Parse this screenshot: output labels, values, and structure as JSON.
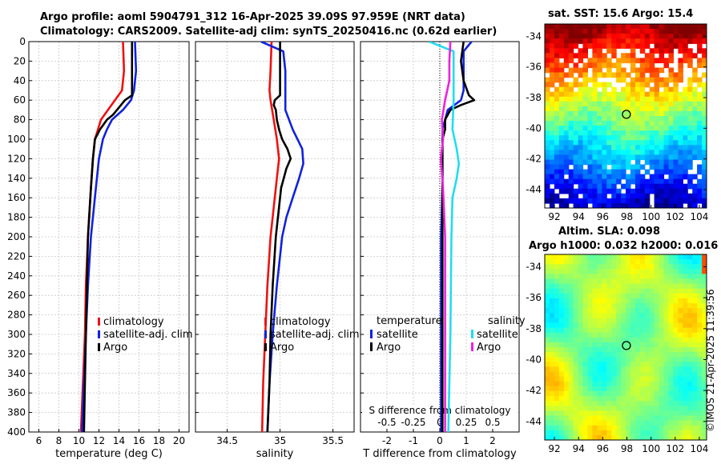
{
  "header": {
    "line1": "Argo profile: aoml 5904791_312 16-Apr-2025 39.09S 97.959E (NRT data)",
    "line2": "Climatology: CARS2009. Satellite-adj clim: synTS_20250416.nc (0.62d earlier)"
  },
  "maps": {
    "sst_title": "sat. SST: 15.6 Argo: 15.4",
    "sla_title1": "Altim. SLA: 0.098",
    "sla_title2": "Argo h1000: 0.032 h2000: 0.016",
    "credit": "©IMOS 21-Apr-2025 11:39:56",
    "lat_ticks": [
      "-34",
      "-36",
      "-38",
      "-40",
      "-42",
      "-44"
    ],
    "lon_ticks": [
      "92",
      "94",
      "96",
      "98",
      "100",
      "102",
      "104"
    ],
    "argo_lon": 97.96,
    "argo_lat": -39.09,
    "lon_range": [
      91.2,
      104.6
    ],
    "lat_range": [
      -45.2,
      -33.2
    ]
  },
  "colors": {
    "climatology": "#ee1111",
    "satellite": "#1122dd",
    "argo": "#000000",
    "salinity_satellite": "#22ddee",
    "salinity_argo": "#ee22dd"
  },
  "chart_data": [
    {
      "type": "line",
      "name": "temperature",
      "xlabel": "temperature (deg C)",
      "ylabel": "depth",
      "xlim": [
        5,
        21
      ],
      "ylim": [
        400,
        0
      ],
      "xticks": [
        "6",
        "8",
        "10",
        "12",
        "14",
        "16",
        "18",
        "20"
      ],
      "yticks": [
        "0",
        "20",
        "40",
        "60",
        "80",
        "100",
        "120",
        "140",
        "160",
        "180",
        "200",
        "220",
        "240",
        "260",
        "280",
        "300",
        "320",
        "340",
        "360",
        "380",
        "400"
      ],
      "legend": [
        "climatology",
        "satellite-adj. clim",
        "Argo"
      ],
      "series": [
        {
          "name": "climatology",
          "depth": [
            0,
            30,
            50,
            60,
            70,
            80,
            90,
            100,
            120,
            150,
            200,
            250,
            300,
            350,
            400
          ],
          "values": [
            14.4,
            14.5,
            14.3,
            13.6,
            12.9,
            12.2,
            11.9,
            11.6,
            11.4,
            11.2,
            10.9,
            10.7,
            10.6,
            10.4,
            10.2
          ]
        },
        {
          "name": "satellite-adj. clim",
          "depth": [
            0,
            30,
            50,
            60,
            70,
            80,
            90,
            100,
            120,
            150,
            200,
            250,
            300,
            350,
            400
          ],
          "values": [
            15.6,
            15.7,
            15.5,
            15.2,
            14.4,
            13.3,
            12.8,
            12.4,
            12.0,
            11.7,
            11.2,
            10.9,
            10.7,
            10.5,
            10.3
          ]
        },
        {
          "name": "Argo",
          "depth": [
            0,
            20,
            40,
            55,
            60,
            65,
            70,
            75,
            80,
            90,
            100,
            120,
            150,
            200,
            250,
            300,
            350,
            400
          ],
          "values": [
            15.3,
            15.3,
            15.3,
            15.3,
            14.6,
            14.2,
            13.8,
            13.4,
            12.8,
            12.1,
            11.6,
            11.4,
            11.2,
            10.9,
            10.8,
            10.7,
            10.6,
            10.5
          ]
        }
      ]
    },
    {
      "type": "line",
      "name": "salinity",
      "xlabel": "salinity",
      "xlim": [
        34.2,
        35.7
      ],
      "ylim": [
        400,
        0
      ],
      "xticks": [
        "34.5",
        "35",
        "35.5"
      ],
      "legend": [
        "climatology",
        "satellite-adj. clim",
        "Argo"
      ],
      "series": [
        {
          "name": "climatology",
          "depth": [
            0,
            30,
            50,
            60,
            80,
            100,
            120,
            140,
            160,
            200,
            250,
            300,
            350,
            400
          ],
          "values": [
            34.92,
            34.91,
            34.9,
            34.91,
            34.94,
            34.97,
            34.99,
            34.97,
            34.95,
            34.91,
            34.88,
            34.86,
            34.84,
            34.83
          ]
        },
        {
          "name": "satellite-adj. clim",
          "depth": [
            0,
            10,
            30,
            50,
            70,
            90,
            110,
            125,
            140,
            160,
            180,
            200,
            250,
            300,
            350,
            400
          ],
          "values": [
            34.82,
            35.03,
            35.05,
            35.05,
            35.05,
            35.12,
            35.21,
            35.22,
            35.18,
            35.12,
            35.06,
            35.02,
            34.97,
            34.93,
            34.9,
            34.88
          ]
        },
        {
          "name": "Argo",
          "depth": [
            0,
            20,
            40,
            55,
            60,
            65,
            70,
            80,
            90,
            100,
            110,
            120,
            130,
            150,
            200,
            250,
            300,
            350,
            400
          ],
          "values": [
            35.0,
            35.0,
            35.0,
            35.0,
            34.95,
            34.94,
            34.96,
            34.97,
            34.99,
            35.02,
            35.07,
            35.1,
            35.06,
            35.01,
            34.96,
            34.93,
            34.91,
            34.9,
            34.88
          ]
        }
      ]
    },
    {
      "type": "line",
      "name": "difference from climatology",
      "xlabel": "T difference from climatology",
      "toplabel": "S difference from climatology",
      "xlim": [
        -3,
        3
      ],
      "ylim": [
        400,
        0
      ],
      "xticks": [
        "-2",
        "-1",
        "0",
        "1",
        "2"
      ],
      "top_xlim": [
        -0.75,
        0.75
      ],
      "top_xticks": [
        "-0.5",
        "-0.25",
        "0",
        "0.25",
        "0.5"
      ],
      "legend_left": {
        "title": "temperature",
        "items": [
          "satellite",
          "Argo"
        ]
      },
      "legend_right": {
        "title": "salinity",
        "items": [
          "satellite",
          "Argo"
        ]
      },
      "series": [
        {
          "name": "temperature satellite",
          "depth": [
            0,
            10,
            30,
            50,
            60,
            70,
            80,
            90,
            100,
            150,
            200,
            300,
            400
          ],
          "values": [
            1.2,
            0.9,
            0.9,
            0.9,
            0.8,
            0.3,
            0.2,
            0.1,
            0.1,
            0.1,
            0.05,
            0.05,
            0.05
          ]
        },
        {
          "name": "temperature Argo",
          "depth": [
            0,
            20,
            40,
            55,
            60,
            65,
            70,
            75,
            80,
            90,
            100,
            150,
            200,
            300,
            400
          ],
          "values": [
            0.9,
            0.8,
            0.9,
            1.1,
            1.3,
            0.8,
            0.4,
            0.3,
            0.2,
            0.2,
            0.1,
            0.1,
            0.1,
            0.1,
            0.1
          ]
        },
        {
          "name": "salinity satellite",
          "depth": [
            0,
            10,
            30,
            60,
            90,
            110,
            125,
            140,
            160,
            200,
            300,
            400
          ],
          "values": [
            -0.1,
            0.13,
            0.13,
            0.13,
            0.12,
            0.16,
            0.18,
            0.16,
            0.12,
            0.11,
            0.1,
            0.08
          ],
          "scale": "top"
        },
        {
          "name": "salinity Argo",
          "depth": [
            0,
            20,
            40,
            60,
            80,
            100,
            120,
            150,
            200,
            300,
            400
          ],
          "values": [
            0.1,
            0.09,
            0.09,
            0.05,
            0.02,
            0.03,
            0.01,
            0.03,
            0.05,
            0.05,
            0.05
          ],
          "scale": "top"
        }
      ]
    }
  ]
}
